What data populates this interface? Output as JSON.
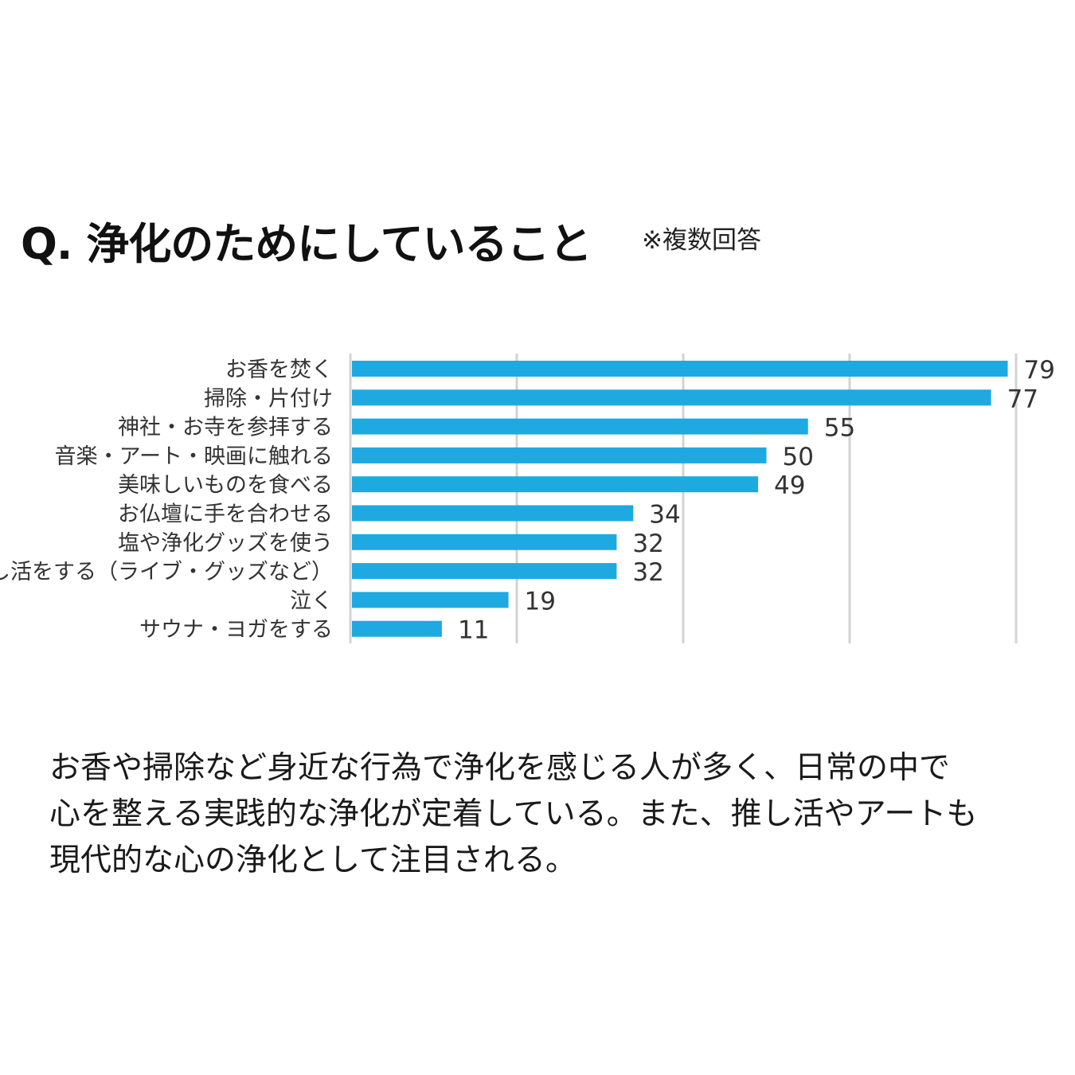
{
  "title": "Q. 浄化のためにしていること",
  "note": "※複数回答",
  "summary": [
    "お香や掃除など身近な行為で浄化を感じる人が多く、日常の中で",
    "心を整える実践的な浄化が定着している。また、推し活やアートも",
    "現代的な心の浄化として注目される。"
  ],
  "colors": {
    "bar": "#1fa9e1",
    "grid": "#d3d3d3",
    "text": "#333333"
  },
  "chart_data": {
    "type": "bar",
    "orientation": "horizontal",
    "categories": [
      "お香を焚く",
      "掃除・片付け",
      "神社・お寺を参拝する",
      "音楽・アート・映画に触れる",
      "美味しいものを食べる",
      "お仏壇に手を合わせる",
      "塩や浄化グッズを使う",
      "推し活をする（ライブ・グッズなど）",
      "泣く",
      "サウナ・ヨガをする"
    ],
    "values": [
      79,
      77,
      55,
      50,
      49,
      34,
      32,
      32,
      19,
      11
    ],
    "xlim": [
      0,
      80
    ],
    "gridlines": [
      0,
      20,
      40,
      60,
      80
    ],
    "grid": true,
    "data_labels": true
  }
}
